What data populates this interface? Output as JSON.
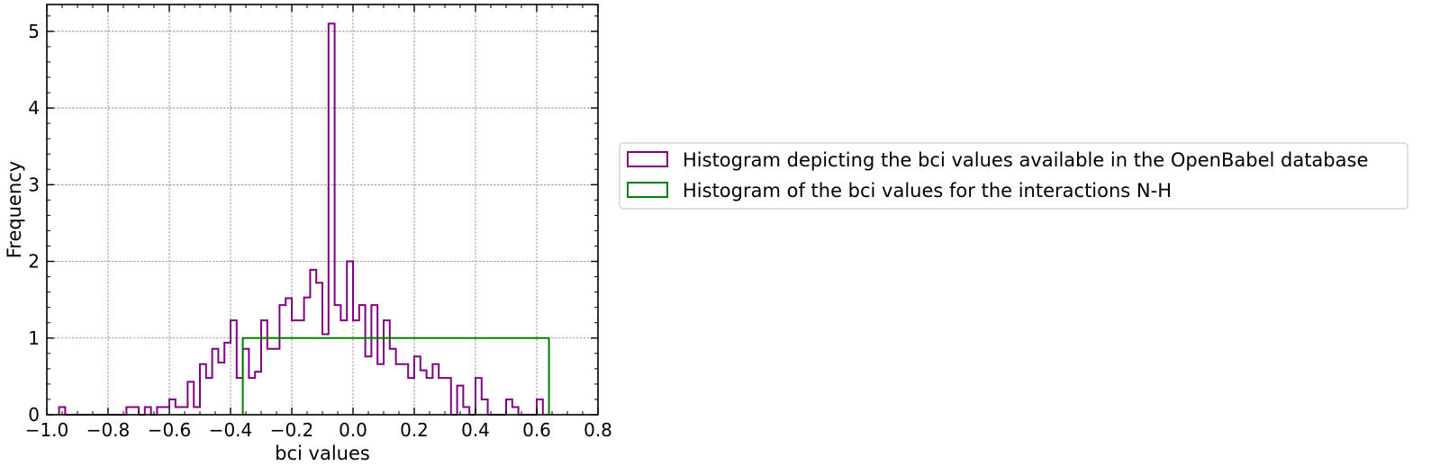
{
  "chart_data": {
    "type": "histogram",
    "xlabel": "bci values",
    "ylabel": "Frequency",
    "xlim": [
      -1.0,
      0.8
    ],
    "ylim": [
      0,
      5.35
    ],
    "grid": true,
    "legend_position": "right of plot",
    "x_ticks": [
      "−1.0",
      "−0.8",
      "−0.6",
      "−0.4",
      "−0.2",
      "0.0",
      "0.2",
      "0.4",
      "0.6",
      "0.8"
    ],
    "y_ticks": [
      "0",
      "1",
      "2",
      "3",
      "4",
      "5"
    ],
    "series": [
      {
        "name": "Histogram depicting the bci values available in the OpenBabel database",
        "color": "#800080",
        "histtype": "step",
        "bin_start": -0.96,
        "bin_width": 0.02,
        "values": [
          0.1,
          0,
          0,
          0,
          0,
          0,
          0,
          0,
          0,
          0,
          0,
          0.1,
          0.1,
          0,
          0.1,
          0,
          0.1,
          0.1,
          0.2,
          0.1,
          0.1,
          0.43,
          0.1,
          0.66,
          0.48,
          0.86,
          0.68,
          0.94,
          1.23,
          0.48,
          0.86,
          0.48,
          0.56,
          1.23,
          0.86,
          0.86,
          1.43,
          1.52,
          1.23,
          1.23,
          1.53,
          1.89,
          1.72,
          1.05,
          5.1,
          1.43,
          1.23,
          2.0,
          1.23,
          1.43,
          0.76,
          1.43,
          0.66,
          1.23,
          0.86,
          0.66,
          0.66,
          0.48,
          0.76,
          0.58,
          0.48,
          0.66,
          0.48,
          0.48,
          0,
          0.38,
          0.1,
          0,
          0.48,
          0.2,
          0,
          0,
          0,
          0.2,
          0.1,
          0,
          0,
          0,
          0.2
        ]
      },
      {
        "name": "Histogram of the bci values for the interactions N-H",
        "color": "#008000",
        "histtype": "step",
        "bin_edges": [
          -0.36,
          0.64
        ],
        "values": [
          1.0
        ]
      }
    ]
  }
}
